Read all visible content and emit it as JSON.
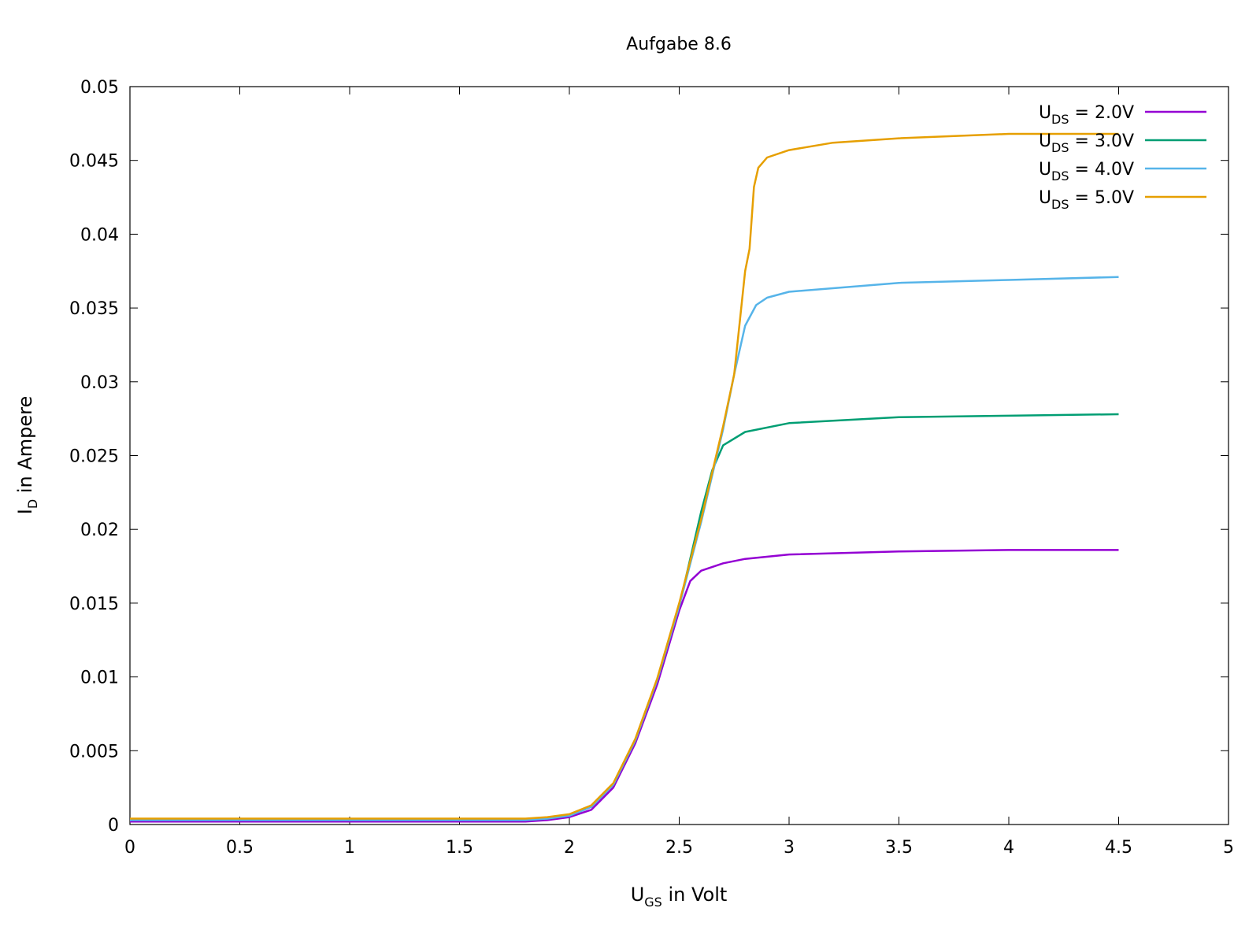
{
  "chart_data": {
    "type": "line",
    "title": "Aufgabe 8.6",
    "xlabel": {
      "main": "U",
      "sub": "GS",
      "rest": " in Volt"
    },
    "ylabel": {
      "main": "I",
      "sub": "D",
      "rest": " in Ampere"
    },
    "xlim": [
      0,
      5
    ],
    "ylim": [
      0,
      0.05
    ],
    "x_ticks": [
      "0",
      "0.5",
      "1",
      "1.5",
      "2",
      "2.5",
      "3",
      "3.5",
      "4",
      "4.5",
      "5"
    ],
    "y_ticks": [
      "0",
      "0.005",
      "0.01",
      "0.015",
      "0.02",
      "0.025",
      "0.03",
      "0.035",
      "0.04",
      "0.045",
      "0.05"
    ],
    "grid": false,
    "legend_position": "top-right",
    "series": [
      {
        "name": {
          "main": "U",
          "sub": "DS",
          "rest": " = 2.0V"
        },
        "color": "#9400d3",
        "x": [
          0,
          1.8,
          1.9,
          2.0,
          2.1,
          2.2,
          2.3,
          2.4,
          2.45,
          2.5,
          2.55,
          2.6,
          2.7,
          2.8,
          3.0,
          3.5,
          4.0,
          4.5
        ],
        "y": [
          0.0002,
          0.0002,
          0.0003,
          0.0005,
          0.001,
          0.0025,
          0.0055,
          0.0095,
          0.012,
          0.0145,
          0.0165,
          0.0172,
          0.0177,
          0.018,
          0.0183,
          0.0185,
          0.0186,
          0.0186
        ]
      },
      {
        "name": {
          "main": "U",
          "sub": "DS",
          "rest": " = 3.0V"
        },
        "color": "#009e73",
        "x": [
          0,
          1.8,
          1.9,
          2.0,
          2.1,
          2.2,
          2.3,
          2.4,
          2.5,
          2.55,
          2.6,
          2.65,
          2.7,
          2.8,
          3.0,
          3.5,
          4.0,
          4.5
        ],
        "y": [
          0.0003,
          0.0003,
          0.0004,
          0.0006,
          0.0012,
          0.0027,
          0.0057,
          0.0098,
          0.0148,
          0.018,
          0.0212,
          0.024,
          0.0257,
          0.0266,
          0.0272,
          0.0276,
          0.0277,
          0.0278
        ]
      },
      {
        "name": {
          "main": "U",
          "sub": "DS",
          "rest": " = 4.0V"
        },
        "color": "#56b4e9",
        "x": [
          0,
          1.8,
          1.9,
          2.0,
          2.1,
          2.2,
          2.3,
          2.4,
          2.5,
          2.6,
          2.7,
          2.75,
          2.8,
          2.85,
          2.9,
          3.0,
          3.5,
          4.0,
          4.5
        ],
        "y": [
          0.0003,
          0.0003,
          0.0004,
          0.0006,
          0.0012,
          0.0027,
          0.0057,
          0.0098,
          0.0148,
          0.0205,
          0.0268,
          0.0305,
          0.0338,
          0.0352,
          0.0357,
          0.0361,
          0.0367,
          0.0369,
          0.0371
        ]
      },
      {
        "name": {
          "main": "U",
          "sub": "DS",
          "rest": " = 5.0V"
        },
        "color": "#e69f00",
        "x": [
          0,
          1.8,
          1.9,
          2.0,
          2.1,
          2.2,
          2.3,
          2.4,
          2.5,
          2.6,
          2.7,
          2.75,
          2.8,
          2.82,
          2.84,
          2.86,
          2.9,
          3.0,
          3.2,
          3.5,
          4.0,
          4.5
        ],
        "y": [
          0.0004,
          0.0004,
          0.0005,
          0.0007,
          0.0013,
          0.0028,
          0.0058,
          0.0099,
          0.015,
          0.0207,
          0.027,
          0.0305,
          0.0375,
          0.039,
          0.0432,
          0.0445,
          0.0452,
          0.0457,
          0.0462,
          0.0465,
          0.0468,
          0.0468
        ]
      }
    ]
  }
}
